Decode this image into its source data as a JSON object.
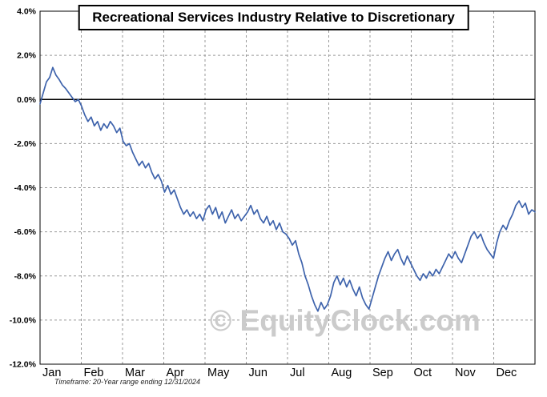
{
  "watermark": "© EquityClock.com",
  "footnote": "Timeframe: 20-Year range ending 12/31/2024",
  "chart_data": {
    "type": "line",
    "title": "Recreational Services Industry Relative to Discretionary",
    "xlabel": "",
    "ylabel": "",
    "x_categories": [
      "Jan",
      "Feb",
      "Mar",
      "Apr",
      "May",
      "Jun",
      "Jul",
      "Aug",
      "Sep",
      "Oct",
      "Nov",
      "Dec"
    ],
    "y_ticks": [
      "4.0%",
      "2.0%",
      "0.0%",
      "-2.0%",
      "-4.0%",
      "-6.0%",
      "-8.0%",
      "-10.0%",
      "-12.0%"
    ],
    "y_tick_values": [
      4,
      2,
      0,
      -2,
      -4,
      -6,
      -8,
      -10,
      -12
    ],
    "ylim": [
      -12,
      4
    ],
    "grid": true,
    "legend_position": "none",
    "line_color": "#3E63AC",
    "zero_line_color": "#000000",
    "grid_color": "#999999",
    "series": [
      {
        "name": "Recreational Services Relative to Discretionary (%)",
        "values": [
          -0.2,
          0.3,
          0.8,
          1.0,
          1.45,
          1.1,
          0.9,
          0.65,
          0.5,
          0.3,
          0.1,
          -0.1,
          0.0,
          -0.3,
          -0.7,
          -1.0,
          -0.8,
          -1.2,
          -1.0,
          -1.4,
          -1.1,
          -1.3,
          -1.0,
          -1.2,
          -1.5,
          -1.3,
          -1.9,
          -2.1,
          -2.0,
          -2.4,
          -2.7,
          -3.0,
          -2.8,
          -3.1,
          -2.9,
          -3.3,
          -3.6,
          -3.4,
          -3.7,
          -4.2,
          -3.9,
          -4.3,
          -4.1,
          -4.5,
          -4.9,
          -5.2,
          -5.0,
          -5.3,
          -5.1,
          -5.4,
          -5.2,
          -5.5,
          -5.0,
          -4.8,
          -5.2,
          -4.9,
          -5.4,
          -5.1,
          -5.6,
          -5.3,
          -5.0,
          -5.4,
          -5.2,
          -5.5,
          -5.3,
          -5.1,
          -4.8,
          -5.2,
          -5.0,
          -5.4,
          -5.6,
          -5.3,
          -5.7,
          -5.5,
          -5.9,
          -5.6,
          -6.0,
          -6.1,
          -6.3,
          -6.6,
          -6.4,
          -7.0,
          -7.4,
          -8.0,
          -8.4,
          -8.9,
          -9.3,
          -9.6,
          -9.2,
          -9.5,
          -9.3,
          -8.9,
          -8.3,
          -8.0,
          -8.4,
          -8.1,
          -8.5,
          -8.2,
          -8.6,
          -8.9,
          -8.5,
          -9.0,
          -9.3,
          -9.5,
          -9.0,
          -8.5,
          -8.0,
          -7.6,
          -7.2,
          -6.9,
          -7.3,
          -7.0,
          -6.8,
          -7.2,
          -7.5,
          -7.1,
          -7.4,
          -7.7,
          -8.0,
          -8.2,
          -7.9,
          -8.1,
          -7.8,
          -8.0,
          -7.7,
          -7.9,
          -7.6,
          -7.3,
          -7.0,
          -7.2,
          -6.9,
          -7.2,
          -7.4,
          -7.0,
          -6.6,
          -6.2,
          -6.0,
          -6.3,
          -6.1,
          -6.5,
          -6.8,
          -7.0,
          -7.2,
          -6.5,
          -6.0,
          -5.7,
          -5.9,
          -5.5,
          -5.2,
          -4.8,
          -4.6,
          -4.9,
          -4.7,
          -5.2,
          -5.0,
          -5.1
        ]
      }
    ]
  }
}
